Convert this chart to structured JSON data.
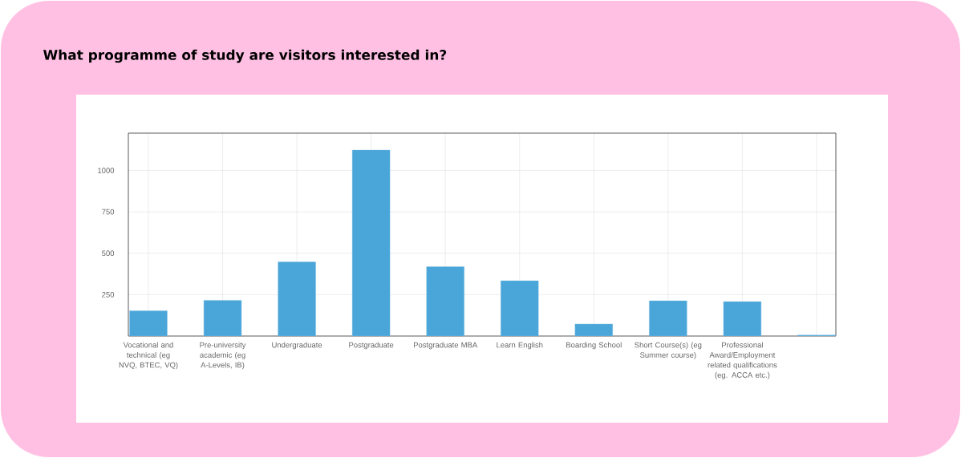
{
  "chart_data": {
    "type": "bar",
    "title": "What programme of study are visitors interested in?",
    "categories": [
      "Vocational and technical (eg NVQ, BTEC, VQ)",
      "Pre-university academic (eg A-Levels, IB)",
      "Undergraduate",
      "Postgraduate",
      "Postgraduate MBA",
      "Learn English",
      "Boarding School",
      "Short Course(s) (eg Summer course)",
      "Professional Award/Employment related qualifications (eg. ACCA etc.)",
      null
    ],
    "values": [
      153,
      216,
      448,
      1123,
      419,
      334,
      73,
      213,
      208,
      6
    ],
    "color": "#4aa5d9",
    "ylim": [
      0,
      1225
    ],
    "yticks": [
      250,
      500,
      750,
      1000
    ],
    "grid": true
  }
}
